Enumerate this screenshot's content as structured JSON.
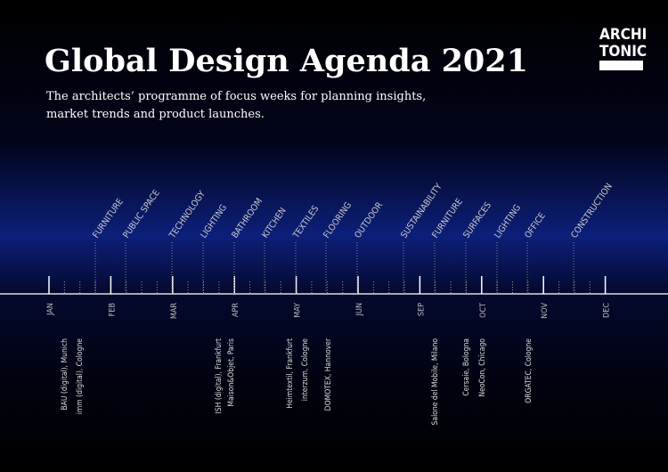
{
  "header": {
    "title": "Global Design Agenda 2021",
    "subtitle": [
      "The architects’ programme of focus weeks for planning insights,",
      "market trends and product launches."
    ]
  },
  "logo": [
    "ARCHI",
    "TONIC"
  ],
  "timeline": {
    "months": [
      "JAN",
      "FEB",
      "MAR",
      "APR",
      "MAY",
      "JUN",
      "SEP",
      "OCT",
      "NOV",
      "DEC"
    ],
    "topics": [
      "FURNITURE",
      "PUBLIC SPACE",
      "TECHNOLOGY",
      "LIGHTING",
      "BATHROOM",
      "KITCHEN",
      "TEXTILES",
      "FLOORING",
      "OUTDOOR",
      "SUSTAINABILITY",
      "FURNITURE",
      "SURFACES",
      "LIGHTING",
      "OFFICE",
      "CONSTRUCTION"
    ],
    "events": [
      "BAU (digital), Munich",
      "imm (digital), Cologne",
      "ISH (digital), Frankfurt",
      "Maison&Objet, Paris",
      "Heimtextil, Frankfurt",
      "interzum, Cologne",
      "DOMOTEX, Hannover",
      "Salone del Mobile, Milano",
      "Cersaie, Bologna",
      "NeoCon, Chicago",
      "ORGATEC, Cologne"
    ]
  }
}
